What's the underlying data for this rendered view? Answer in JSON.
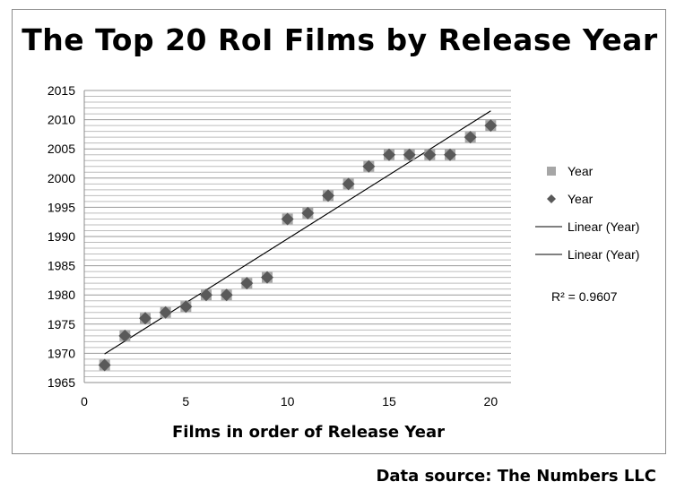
{
  "chart_data": {
    "type": "scatter",
    "title": "The Top 20 RoI Films by Release Year",
    "xlabel": "Films in order of Release Year",
    "ylabel": "",
    "xlim": [
      0,
      21
    ],
    "ylim": [
      1965,
      2015
    ],
    "x_ticks": [
      0,
      5,
      10,
      15,
      20
    ],
    "y_ticks": [
      1965,
      1970,
      1975,
      1980,
      1985,
      1990,
      1995,
      2000,
      2005,
      2010,
      2015
    ],
    "grid": "horizontal minor lines every 1 unit",
    "legend_position": "right",
    "series": [
      {
        "name": "Year",
        "marker": "square",
        "color": "#a6a6a6",
        "x": [
          1,
          2,
          3,
          4,
          5,
          6,
          7,
          8,
          9,
          10,
          11,
          12,
          13,
          14,
          15,
          16,
          17,
          18,
          19,
          20
        ],
        "y": [
          1968,
          1973,
          1976,
          1977,
          1978,
          1980,
          1980,
          1982,
          1983,
          1993,
          1994,
          1997,
          1999,
          2002,
          2004,
          2004,
          2004,
          2004,
          2007,
          2009
        ]
      },
      {
        "name": "Year",
        "marker": "diamond",
        "color": "#595959",
        "x": [
          1,
          2,
          3,
          4,
          5,
          6,
          7,
          8,
          9,
          10,
          11,
          12,
          13,
          14,
          15,
          16,
          17,
          18,
          19,
          20
        ],
        "y": [
          1968,
          1973,
          1976,
          1977,
          1978,
          1980,
          1980,
          1982,
          1983,
          1993,
          1994,
          1997,
          1999,
          2002,
          2004,
          2004,
          2004,
          2004,
          2007,
          2009
        ]
      }
    ],
    "trendlines": [
      {
        "name": "Linear (Year)",
        "color": "#000000",
        "x": [
          1,
          20
        ],
        "y": [
          1969.9,
          2011.5
        ]
      },
      {
        "name": "Linear (Year)",
        "color": "#000000",
        "x": [
          1,
          20
        ],
        "y": [
          1969.9,
          2011.5
        ]
      }
    ],
    "annotation": "R² = 0.9607",
    "source": "Data source: The Numbers LLC"
  }
}
